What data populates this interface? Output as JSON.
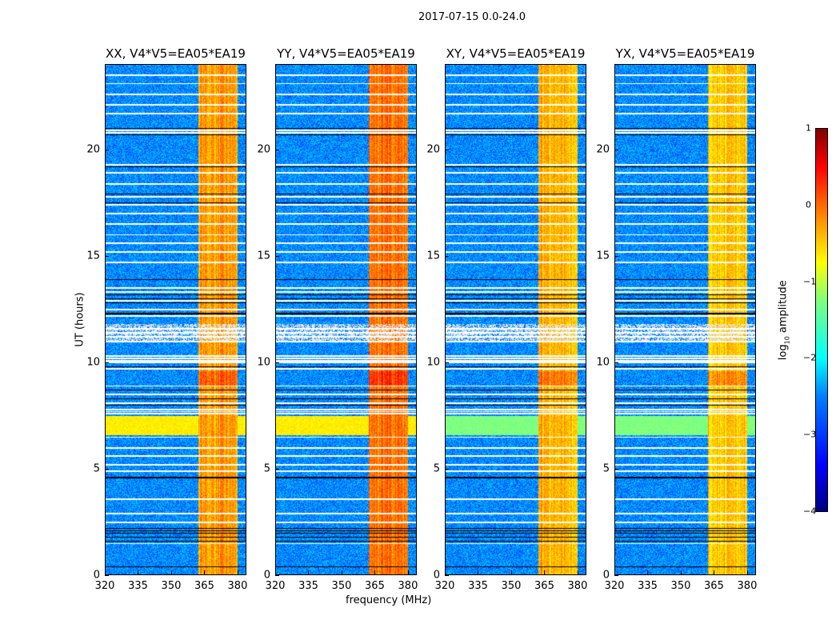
{
  "title": "2017-07-15 0.0-24.0",
  "chart_data": {
    "type": "heatmap",
    "title": "2017-07-15 0.0-24.0",
    "xlabel": "frequency (MHz)",
    "ylabel": "UT (hours)",
    "xlim": [
      320,
      384
    ],
    "ylim": [
      0,
      24
    ],
    "xticks": [
      "320",
      "335",
      "350",
      "365",
      "380"
    ],
    "xtick_values": [
      320,
      335,
      350,
      365,
      380
    ],
    "yticks": [
      "0",
      "5",
      "10",
      "15",
      "20"
    ],
    "ytick_values": [
      0,
      5,
      10,
      15,
      20
    ],
    "panels": [
      {
        "title": "XX, V4*V5=EA05*EA19",
        "rfi_band_level": -0.4,
        "broadband_level": -0.8
      },
      {
        "title": "YY, V4*V5=EA05*EA19",
        "rfi_band_level": -0.2,
        "broadband_level": -0.8
      },
      {
        "title": "XY, V4*V5=EA05*EA19",
        "rfi_band_level": -0.5,
        "broadband_level": -1.5
      },
      {
        "title": "YX, V4*V5=EA05*EA19",
        "rfi_band_level": -0.6,
        "broadband_level": -1.5
      }
    ],
    "background_level": -2.7,
    "rfi_band_mhz": [
      362,
      380
    ],
    "broadband_hours": [
      6.6,
      7.5
    ],
    "flagged_hours_white": [
      1.5,
      2.5,
      2.9,
      3.6,
      4.9,
      5.2,
      5.6,
      6.0,
      6.5,
      7.6,
      7.7,
      7.8,
      8.1,
      8.5,
      8.9,
      9.7,
      10.0,
      10.1,
      10.2,
      10.3,
      11.0,
      11.2,
      11.4,
      11.6,
      12.2,
      12.5,
      12.9,
      13.3,
      13.5,
      14.7,
      15.2,
      15.6,
      16.0,
      16.5,
      17.0,
      17.4,
      17.8,
      18.4,
      18.9,
      19.3,
      20.8,
      20.9,
      21.7,
      22.1,
      22.6,
      23.1,
      23.5
    ],
    "flagged_hours_black": [
      0.4,
      1.6,
      1.8,
      2.0,
      2.1,
      2.2,
      4.6,
      8.0,
      8.3,
      8.7,
      9.8,
      12.3,
      12.8,
      13.0,
      13.2,
      13.9,
      17.5,
      17.9,
      19.2,
      20.7,
      21.0
    ],
    "colorbar": {
      "label": "log10 amplitude",
      "label_main": "log",
      "label_sub": "10",
      "label_rest": " amplitude",
      "range": [
        -4,
        1
      ],
      "ticks": [
        "1",
        "0",
        "−1",
        "−2",
        "−3",
        "−4"
      ],
      "tick_values": [
        1,
        0,
        -1,
        -2,
        -3,
        -4
      ],
      "colormap": "jet"
    }
  }
}
